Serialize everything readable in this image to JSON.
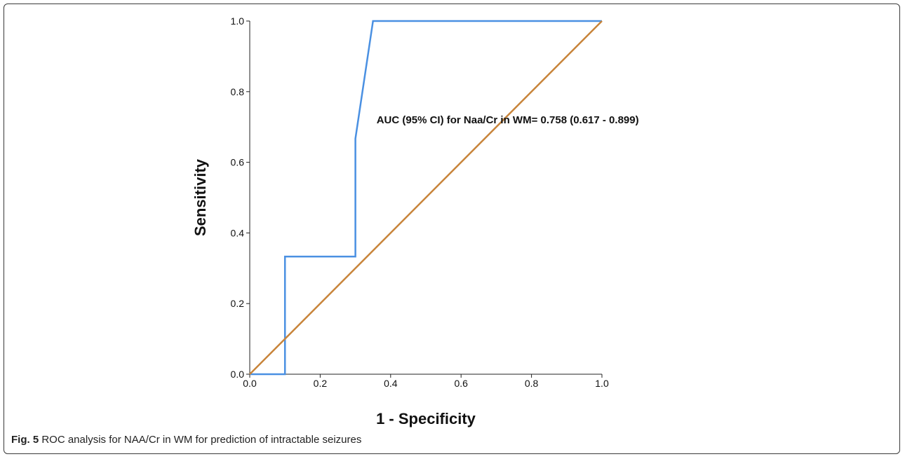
{
  "caption": {
    "label": "Fig. 5",
    "text": "ROC analysis for NAA/Cr in WM for prediction of intractable seizures"
  },
  "chart_data": {
    "type": "line",
    "xlabel": "1 - Specificity",
    "ylabel": "Sensitivity",
    "xlim": [
      0,
      1
    ],
    "ylim": [
      0,
      1
    ],
    "xticks": [
      "0.0",
      "0.2",
      "0.4",
      "0.6",
      "0.8",
      "1.0"
    ],
    "yticks": [
      "0.0",
      "0.2",
      "0.4",
      "0.6",
      "0.8",
      "1.0"
    ],
    "grid": false,
    "annotation": {
      "text": "AUC (95% CI) for Naa/Cr in WM= 0.758 (0.617 - 0.899)",
      "x": 0.36,
      "y": 0.71
    },
    "series": [
      {
        "color": "#4a90e2",
        "x": [
          0,
          0.1,
          0.1,
          0.3,
          0.3,
          0.35,
          1.0
        ],
        "y": [
          0,
          0,
          0.333,
          0.333,
          0.667,
          1.0,
          1.0
        ]
      },
      {
        "color": "#c8843a",
        "x": [
          0,
          1
        ],
        "y": [
          0,
          1
        ]
      }
    ]
  }
}
